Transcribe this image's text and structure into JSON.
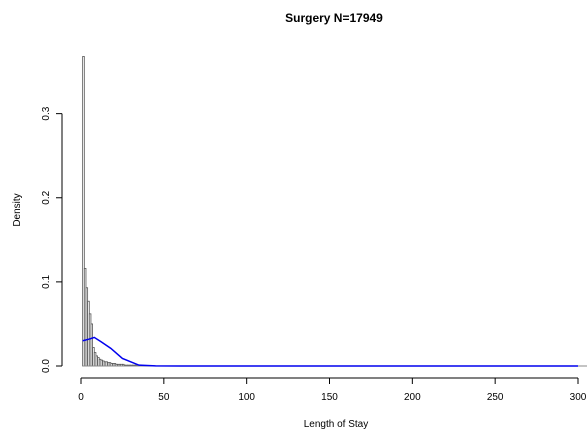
{
  "chart_data": {
    "type": "bar",
    "title": "Surgery N=17949",
    "xlabel": "Length of Stay",
    "ylabel": "Density",
    "xlim": [
      0,
      300
    ],
    "ylim": [
      0,
      0.37
    ],
    "x_ticks": [
      0,
      50,
      100,
      150,
      200,
      250,
      300
    ],
    "y_ticks": [
      0.0,
      0.1,
      0.2,
      0.3
    ],
    "x_tick_labels": [
      "0",
      "50",
      "100",
      "150",
      "200",
      "250",
      "300"
    ],
    "y_tick_labels": [
      "0.0",
      "0.1",
      "0.2",
      "0.3"
    ],
    "bin_width": 1,
    "histogram": {
      "bin_starts": [
        1,
        2,
        3,
        4,
        5,
        6,
        7,
        8,
        9,
        10,
        11,
        12,
        13,
        14,
        15,
        16,
        17,
        18,
        19,
        20,
        21,
        22,
        23,
        24,
        25,
        26,
        27,
        28,
        29,
        30,
        31,
        32,
        33,
        34,
        35,
        36,
        37,
        38,
        39,
        40
      ],
      "values": [
        0.368,
        0.116,
        0.093,
        0.077,
        0.062,
        0.05,
        0.022,
        0.016,
        0.012,
        0.01,
        0.008,
        0.007,
        0.006,
        0.005,
        0.005,
        0.004,
        0.004,
        0.003,
        0.003,
        0.003,
        0.002,
        0.002,
        0.002,
        0.002,
        0.002,
        0.001,
        0.001,
        0.001,
        0.001,
        0.001,
        0.001,
        0.001,
        0.001,
        0.001,
        0.0005,
        0.0005,
        0.0005,
        0.0005,
        0.0005,
        0.0005
      ],
      "color": "#555555"
    },
    "series": [
      {
        "type": "line",
        "color": "#0000ee",
        "x": [
          1,
          5,
          8,
          12,
          18,
          25,
          30,
          35,
          45,
          60,
          100,
          150,
          200,
          250,
          300
        ],
        "y": [
          0.03,
          0.032,
          0.034,
          0.029,
          0.021,
          0.009,
          0.005,
          0.001,
          0.0002,
          0.0,
          0.0,
          0.0,
          0.0,
          0.0,
          0.0
        ]
      }
    ],
    "grid": false,
    "legend": "none"
  }
}
